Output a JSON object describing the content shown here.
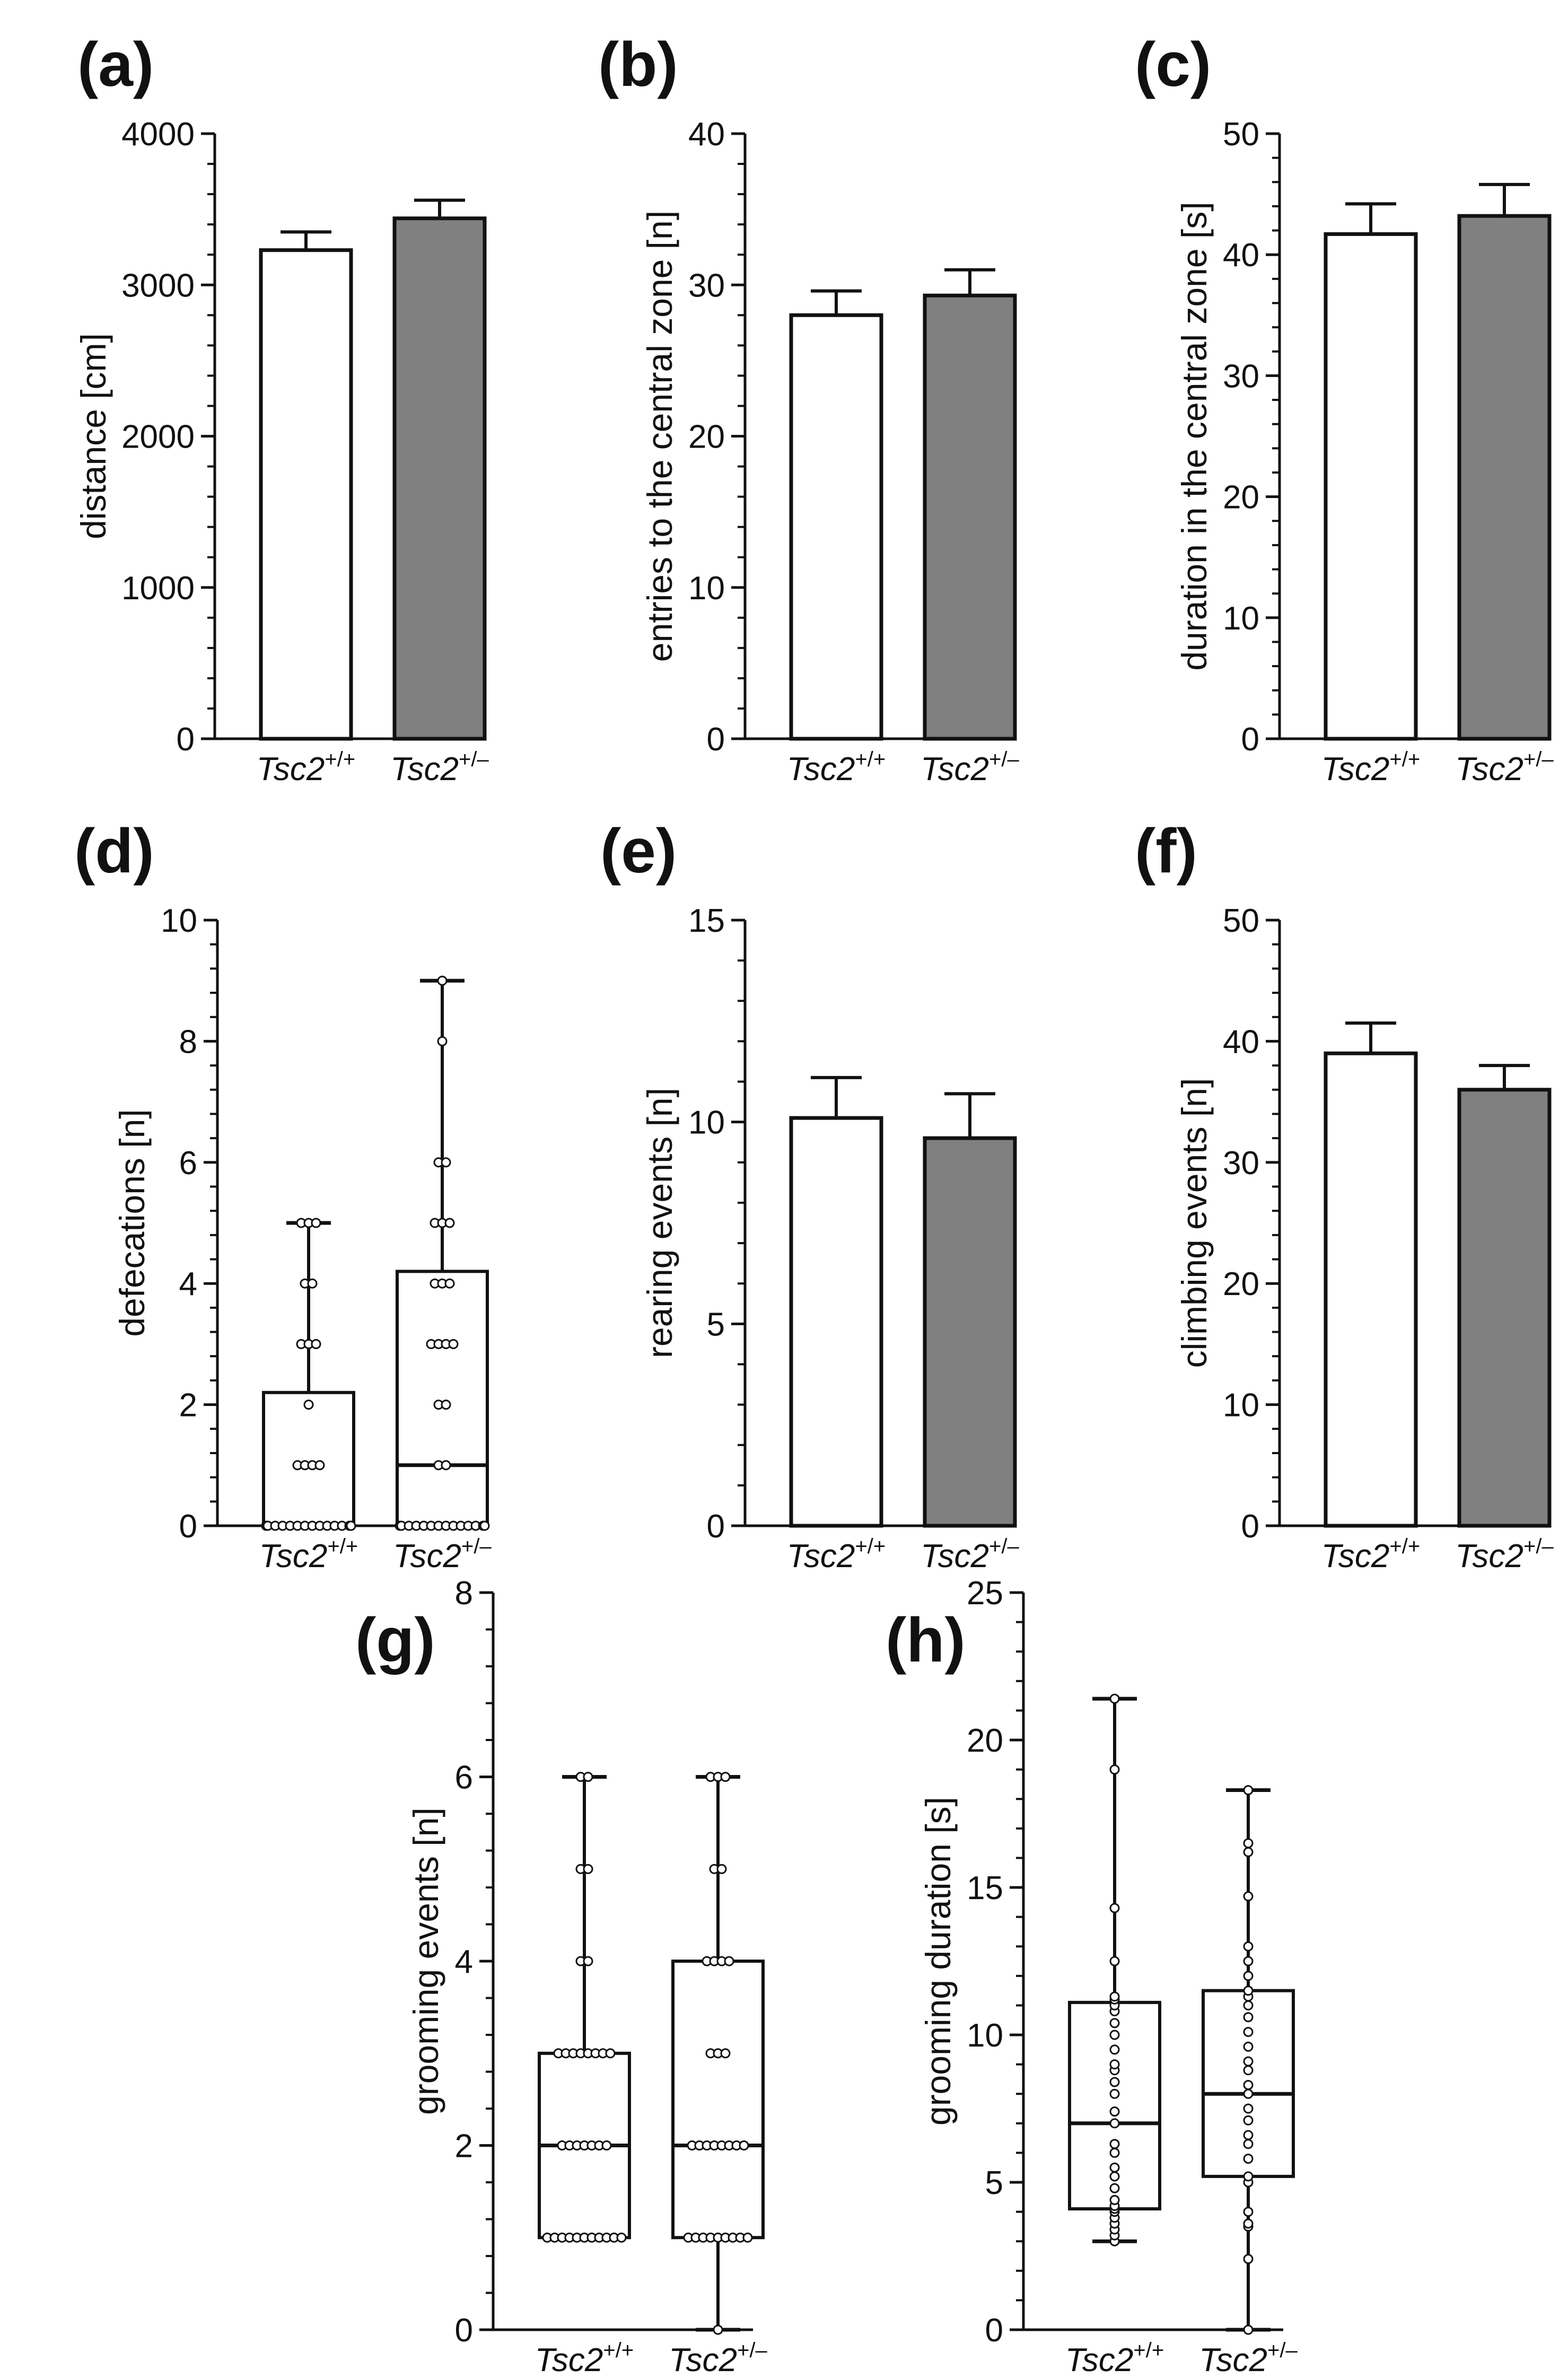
{
  "chart_data": [
    {
      "id": "a",
      "panel_label": "(a)",
      "type": "bar",
      "ylabel": "distance [cm]",
      "ylim": [
        0,
        4000
      ],
      "yticks": [
        0,
        1000,
        2000,
        3000,
        4000
      ],
      "categories": [
        {
          "base": "Tsc2",
          "sup": "+/+",
          "color": "#ffffff"
        },
        {
          "base": "Tsc2",
          "sup": "+/–",
          "color": "#808080"
        }
      ],
      "values": [
        3230,
        3440
      ],
      "errors": [
        120,
        120
      ]
    },
    {
      "id": "b",
      "panel_label": "(b)",
      "type": "bar",
      "ylabel": "entries to the central zone [n]",
      "ylim": [
        0,
        40
      ],
      "yticks": [
        0,
        10,
        20,
        30,
        40
      ],
      "categories": [
        {
          "base": "Tsc2",
          "sup": "+/+",
          "color": "#ffffff"
        },
        {
          "base": "Tsc2",
          "sup": "+/–",
          "color": "#808080"
        }
      ],
      "values": [
        28.0,
        29.3
      ],
      "errors": [
        1.6,
        1.7
      ]
    },
    {
      "id": "c",
      "panel_label": "(c)",
      "type": "bar",
      "ylabel": "duration in the central zone [s]",
      "ylim": [
        0,
        50
      ],
      "yticks": [
        0,
        10,
        20,
        30,
        40,
        50
      ],
      "categories": [
        {
          "base": "Tsc2",
          "sup": "+/+",
          "color": "#ffffff"
        },
        {
          "base": "Tsc2",
          "sup": "+/–",
          "color": "#808080"
        }
      ],
      "values": [
        41.7,
        43.2
      ],
      "errors": [
        2.5,
        2.6
      ]
    },
    {
      "id": "d",
      "panel_label": "(d)",
      "type": "box",
      "ylabel": "defecations [n]",
      "ylim": [
        0,
        10
      ],
      "yticks": [
        0,
        2,
        4,
        6,
        8,
        10
      ],
      "categories": [
        {
          "base": "Tsc2",
          "sup": "+/+"
        },
        {
          "base": "Tsc2",
          "sup": "+/–"
        }
      ],
      "boxes": [
        {
          "min": 0,
          "q1": 0,
          "median": 0,
          "q3": 2.2,
          "max": 5,
          "points": [
            0,
            0,
            0,
            0,
            0,
            0,
            0,
            0,
            0,
            0,
            0,
            0,
            0,
            0,
            0,
            0,
            1,
            1,
            1,
            1,
            2,
            3,
            3,
            3,
            4,
            4,
            5,
            5,
            5
          ]
        },
        {
          "min": 0,
          "q1": 0,
          "median": 1,
          "q3": 4.2,
          "max": 9,
          "points": [
            0,
            0,
            0,
            0,
            0,
            0,
            0,
            0,
            0,
            0,
            0,
            0,
            0,
            0,
            1,
            1,
            2,
            2,
            3,
            3,
            3,
            3,
            4,
            4,
            4,
            5,
            5,
            5,
            6,
            6,
            8,
            9
          ]
        }
      ]
    },
    {
      "id": "e",
      "panel_label": "(e)",
      "type": "bar",
      "ylabel": "rearing events [n]",
      "ylim": [
        0,
        15
      ],
      "yticks": [
        0,
        5,
        10,
        15
      ],
      "categories": [
        {
          "base": "Tsc2",
          "sup": "+/+",
          "color": "#ffffff"
        },
        {
          "base": "Tsc2",
          "sup": "+/–",
          "color": "#808080"
        }
      ],
      "values": [
        10.1,
        9.6
      ],
      "errors": [
        1.0,
        1.1
      ]
    },
    {
      "id": "f",
      "panel_label": "(f)",
      "type": "bar",
      "ylabel": "climbing events [n]",
      "ylim": [
        0,
        50
      ],
      "yticks": [
        0,
        10,
        20,
        30,
        40,
        50
      ],
      "categories": [
        {
          "base": "Tsc2",
          "sup": "+/+",
          "color": "#ffffff"
        },
        {
          "base": "Tsc2",
          "sup": "+/–",
          "color": "#808080"
        }
      ],
      "values": [
        39.0,
        36.0
      ],
      "errors": [
        2.5,
        2.0
      ]
    },
    {
      "id": "g",
      "panel_label": "(g)",
      "type": "box",
      "ylabel": "grooming events [n]",
      "ylim": [
        0,
        8
      ],
      "yticks": [
        0,
        2,
        4,
        6,
        8
      ],
      "categories": [
        {
          "base": "Tsc2",
          "sup": "+/+"
        },
        {
          "base": "Tsc2",
          "sup": "+/–"
        }
      ],
      "boxes": [
        {
          "min": 1,
          "q1": 1,
          "median": 2,
          "q3": 3,
          "max": 6,
          "points": [
            1,
            1,
            1,
            1,
            1,
            1,
            1,
            1,
            1,
            1,
            1,
            2,
            2,
            2,
            2,
            2,
            2,
            2,
            3,
            3,
            3,
            3,
            3,
            3,
            3,
            3,
            4,
            4,
            5,
            5,
            6,
            6
          ]
        },
        {
          "min": 0,
          "q1": 1,
          "median": 2,
          "q3": 4,
          "max": 6,
          "points": [
            0,
            1,
            1,
            1,
            1,
            1,
            1,
            1,
            1,
            1,
            2,
            2,
            2,
            2,
            2,
            2,
            2,
            2,
            3,
            3,
            3,
            4,
            4,
            4,
            4,
            5,
            5,
            6,
            6,
            6
          ]
        }
      ]
    },
    {
      "id": "h",
      "panel_label": "(h)",
      "type": "box",
      "ylabel": "grooming duration [s]",
      "ylim": [
        0,
        25
      ],
      "yticks": [
        0,
        5,
        10,
        15,
        20,
        25
      ],
      "categories": [
        {
          "base": "Tsc2",
          "sup": "+/+"
        },
        {
          "base": "Tsc2",
          "sup": "+/–"
        }
      ],
      "boxes": [
        {
          "min": 3.0,
          "q1": 4.1,
          "median": 7.0,
          "q3": 11.1,
          "max": 21.4,
          "points": [
            3.0,
            3.2,
            3.4,
            3.6,
            3.8,
            4.0,
            4.1,
            4.2,
            4.4,
            4.8,
            5.2,
            5.5,
            6.0,
            6.3,
            7.0,
            7.4,
            8.0,
            8.4,
            8.8,
            9.0,
            9.5,
            10.0,
            10.4,
            10.8,
            11.0,
            11.2,
            11.3,
            12.5,
            14.3,
            19.0,
            21.4
          ]
        },
        {
          "min": 0,
          "q1": 5.2,
          "median": 8.0,
          "q3": 11.5,
          "max": 18.3,
          "points": [
            0,
            2.4,
            3.5,
            3.6,
            4.0,
            5.0,
            5.2,
            5.8,
            6.3,
            6.6,
            7.1,
            7.5,
            8.0,
            8.3,
            8.8,
            9.1,
            9.6,
            10.1,
            10.6,
            11.0,
            11.3,
            11.5,
            12.0,
            12.5,
            13.0,
            14.7,
            16.2,
            16.5,
            18.3
          ]
        }
      ]
    }
  ]
}
